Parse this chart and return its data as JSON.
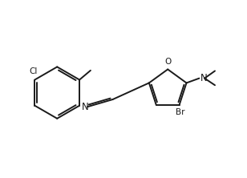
{
  "bg_color": "#ffffff",
  "line_color": "#1a1a1a",
  "line_width": 1.4,
  "font_size": 7.5,
  "fig_width": 3.08,
  "fig_height": 2.22,
  "dpi": 100,
  "xlim": [
    0,
    10.0
  ],
  "ylim": [
    1.2,
    6.5
  ]
}
